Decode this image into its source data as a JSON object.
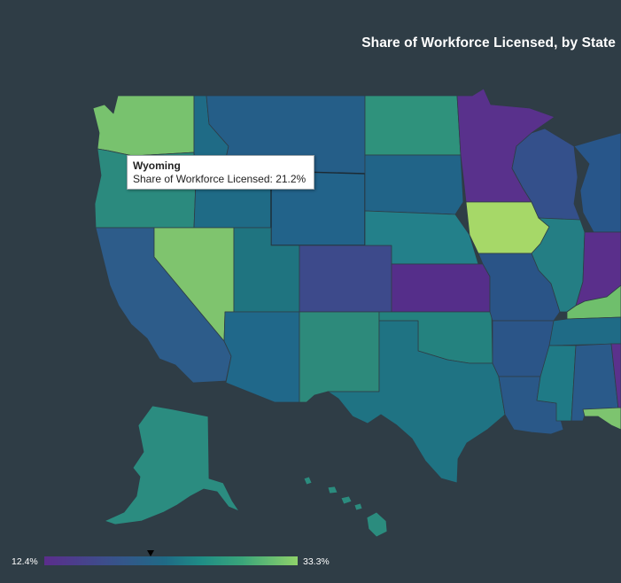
{
  "title": "Share of Workforce Licensed, by State",
  "tooltip": {
    "state": "Wyoming",
    "metric_label": "Share of Workforce Licensed",
    "metric_value": "21.2%",
    "text": "Share of Workforce Licensed: 21.2%"
  },
  "legend": {
    "min_label": "12.4%",
    "max_label": "33.3%",
    "min": 12.4,
    "max": 33.3,
    "marker_value": 21.2,
    "colors": [
      "#5b2d8c",
      "#3b4f8b",
      "#1f6b86",
      "#1f8d86",
      "#3aa57a",
      "#8fd26a"
    ]
  },
  "states": [
    {
      "name": "Washington",
      "fill": "#78c26e"
    },
    {
      "name": "Oregon",
      "fill": "#2b8a7e"
    },
    {
      "name": "California",
      "fill": "#2d5c8a"
    },
    {
      "name": "Idaho",
      "fill": "#1f6b86"
    },
    {
      "name": "Nevada",
      "fill": "#7fc46e"
    },
    {
      "name": "Montana",
      "fill": "#255e88"
    },
    {
      "name": "Wyoming",
      "fill": "#22638a"
    },
    {
      "name": "Utah",
      "fill": "#1f7480"
    },
    {
      "name": "Arizona",
      "fill": "#20688a"
    },
    {
      "name": "Colorado",
      "fill": "#3d4a8b"
    },
    {
      "name": "New Mexico",
      "fill": "#2d8a7b"
    },
    {
      "name": "North Dakota",
      "fill": "#2f927c"
    },
    {
      "name": "South Dakota",
      "fill": "#216488"
    },
    {
      "name": "Nebraska",
      "fill": "#23808a"
    },
    {
      "name": "Kansas",
      "fill": "#552e8a"
    },
    {
      "name": "Oklahoma",
      "fill": "#24827f"
    },
    {
      "name": "Texas",
      "fill": "#1f7383"
    },
    {
      "name": "Minnesota",
      "fill": "#59318c"
    },
    {
      "name": "Iowa",
      "fill": "#a6d868"
    },
    {
      "name": "Missouri",
      "fill": "#2a5487"
    },
    {
      "name": "Arkansas",
      "fill": "#2b5588"
    },
    {
      "name": "Louisiana",
      "fill": "#2a5888"
    },
    {
      "name": "Wisconsin",
      "fill": "#34508b"
    },
    {
      "name": "Illinois",
      "fill": "#247e84"
    },
    {
      "name": "Michigan",
      "fill": "#28568a"
    },
    {
      "name": "Indiana",
      "fill": "#5a2f8b"
    },
    {
      "name": "Kentucky",
      "fill": "#6fbf6c"
    },
    {
      "name": "Tennessee",
      "fill": "#1f6b86"
    },
    {
      "name": "Mississippi",
      "fill": "#1f7a86"
    },
    {
      "name": "Alabama",
      "fill": "#2a5a8a"
    },
    {
      "name": "Georgia",
      "fill": "#5b318c"
    },
    {
      "name": "Florida",
      "fill": "#7dc46f"
    },
    {
      "name": "Alaska",
      "fill": "#2b8c80"
    },
    {
      "name": "Hawaii",
      "fill": "#2b8c7e"
    }
  ]
}
